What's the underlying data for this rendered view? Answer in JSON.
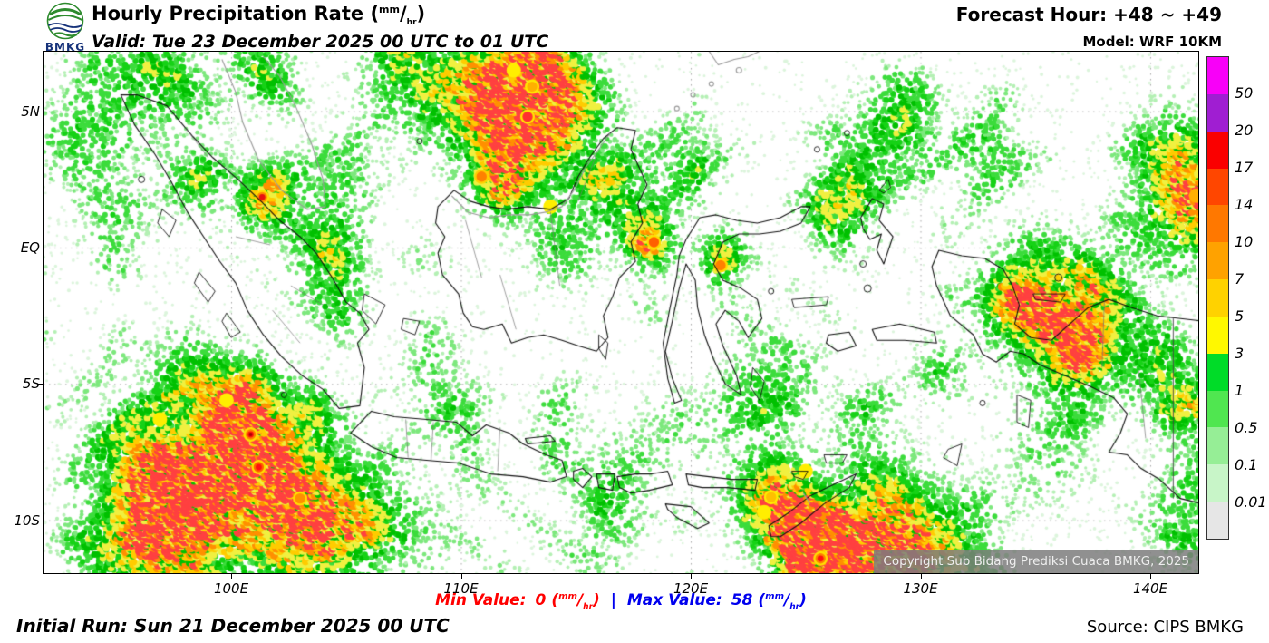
{
  "header": {
    "logo_text": "BMKG",
    "title": {
      "prefix": "Hourly Precipitation Rate (",
      "unit_num": "mm",
      "unit_slash": "/",
      "unit_den": "hr",
      "suffix": ")"
    },
    "valid": "Valid: Tue 23 December 2025 00 UTC to 01 UTC",
    "forecast_hour": "Forecast Hour: +48 ~ +49",
    "model": "Model: WRF 10KM"
  },
  "map": {
    "lat_labels": [
      "5N",
      "EQ",
      "5S",
      "10S"
    ],
    "lon_labels": [
      "100E",
      "110E",
      "120E",
      "130E",
      "140E"
    ],
    "copyright": "Copyright Sub Bidang Prediksi Cuaca BMKG, 2025"
  },
  "legend": {
    "labels": [
      "50",
      "20",
      "17",
      "14",
      "10",
      "7",
      "5",
      "3",
      "1",
      "0.5",
      "0.1",
      "0.01"
    ],
    "colors": [
      "#f800f8",
      "#a01ed2",
      "#fa0000",
      "#ff4600",
      "#ff7800",
      "#ffa200",
      "#ffd200",
      "#fff800",
      "#00dc28",
      "#50e650",
      "#96ee96",
      "#c8f5c8",
      "#e6e6e6"
    ]
  },
  "footer": {
    "min_label": "Min Value:",
    "min_value": "0",
    "max_label": "Max Value:",
    "max_value": "58",
    "unit_open": "(",
    "unit_num": "mm",
    "unit_slash": "/",
    "unit_den": "hr",
    "unit_close": ")",
    "separator": "|",
    "initial_run": "Initial Run: Sun 21 December 2025 00 UTC",
    "source": "Source: CIPS BMKG"
  },
  "colors": {
    "min_red": "#ff0000",
    "max_blue": "#0000ee",
    "logo_navy": "#16327a",
    "logo_green": "#2e8b2e"
  }
}
